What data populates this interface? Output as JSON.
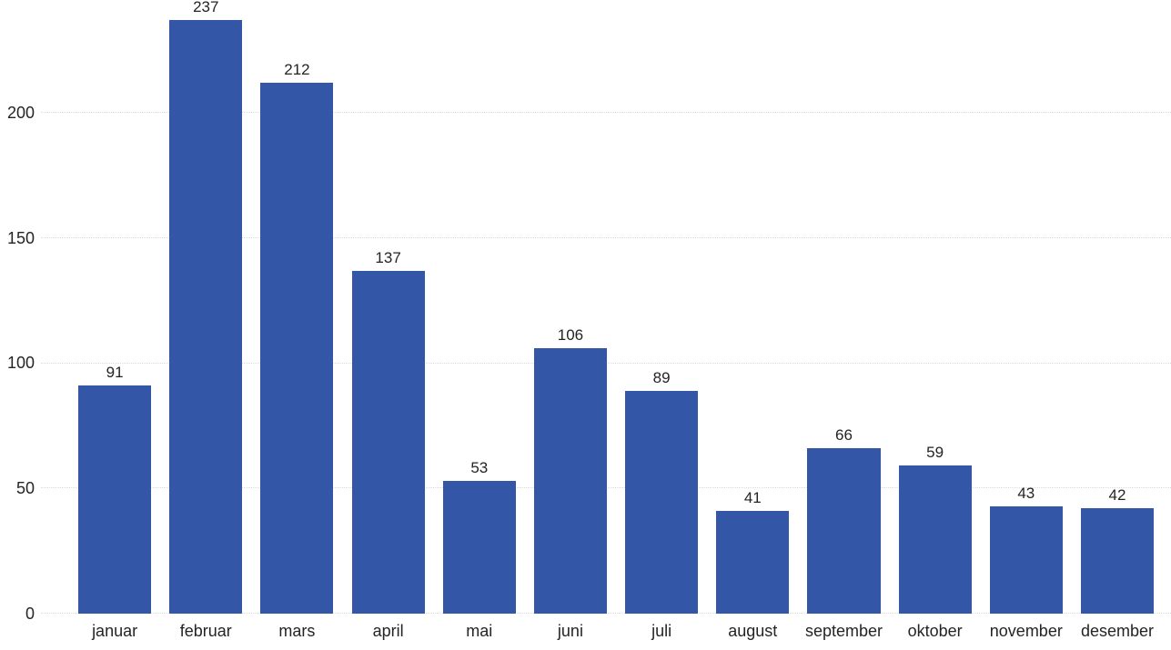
{
  "chart_data": {
    "type": "bar",
    "categories": [
      "januar",
      "februar",
      "mars",
      "april",
      "mai",
      "juni",
      "juli",
      "august",
      "september",
      "oktober",
      "november",
      "desember"
    ],
    "values": [
      91,
      237,
      212,
      137,
      53,
      106,
      89,
      41,
      66,
      59,
      43,
      42
    ],
    "title": "",
    "xlabel": "",
    "ylabel": "",
    "ylim": [
      0,
      245
    ],
    "yticks": [
      0,
      50,
      100,
      150,
      200
    ],
    "grid": "horizontal-dotted",
    "legend": "none",
    "data_labels": true,
    "colors": {
      "bar": "#3356A6",
      "value_label": "#252423",
      "tick_label": "#252423",
      "gridline": "#DCDCDC",
      "background": "#FFFFFF"
    }
  }
}
